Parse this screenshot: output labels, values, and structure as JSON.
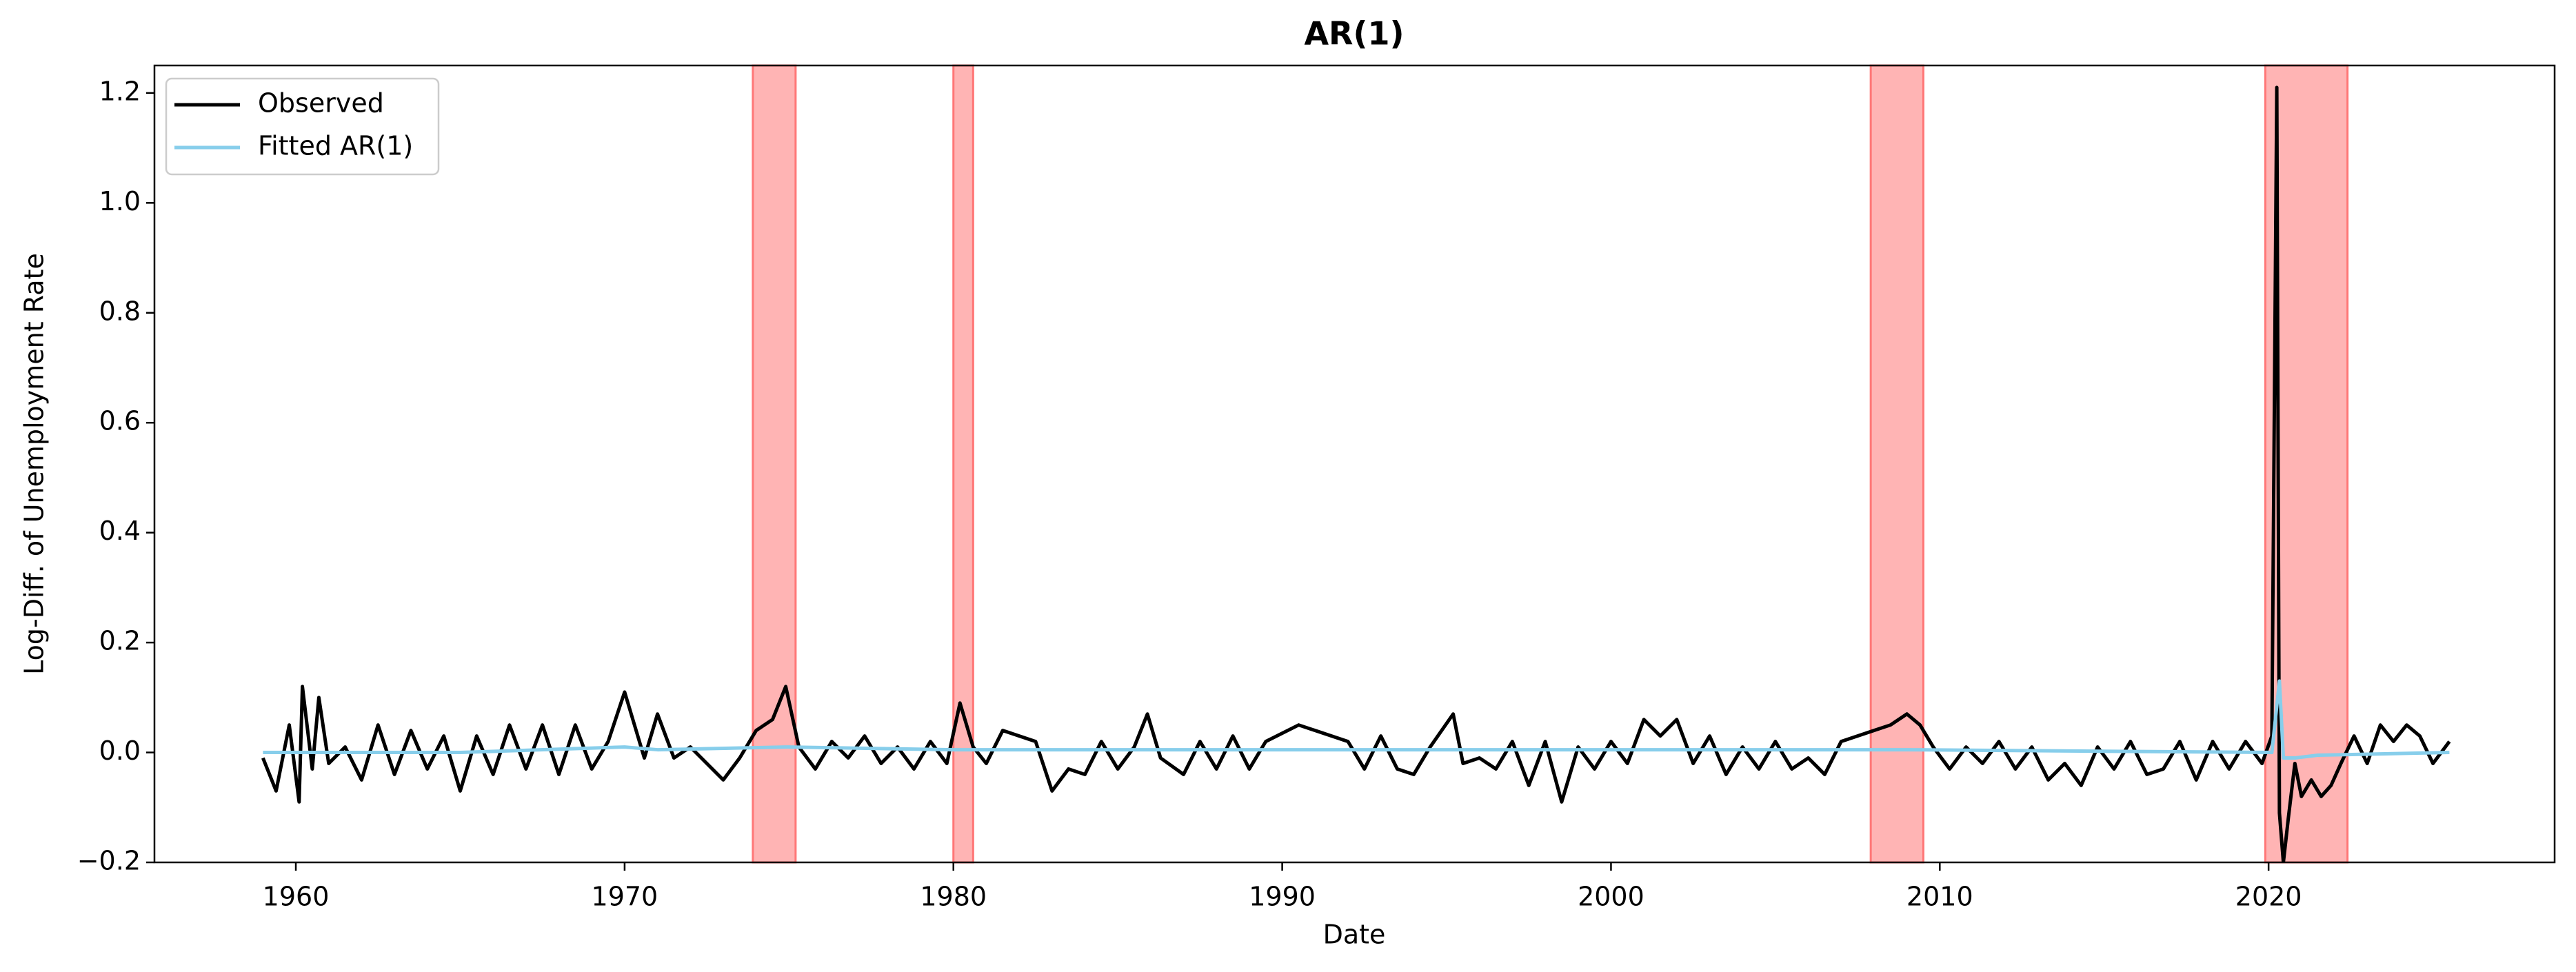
{
  "chart_data": {
    "type": "line",
    "title": "AR(1)",
    "x_label": "Date",
    "y_label": "Log-Diff. of Unemployment Rate",
    "xlim": [
      1955.7,
      2028.7
    ],
    "xticks": [
      1960,
      1970,
      1980,
      1990,
      2000,
      2010,
      2020
    ],
    "ylim": [
      -0.2,
      1.25
    ],
    "yticks": [
      {
        "value": -0.2,
        "label": "−0.2"
      },
      {
        "value": 0,
        "label": "0.0"
      },
      0.2,
      0.4,
      0.6,
      0.8,
      {
        "value": 1,
        "label": "1.0"
      },
      1.2
    ],
    "legend": "upper left",
    "grid": false,
    "shade_color": "#ff7777",
    "shaded_regions": [
      {
        "start": 1973.9,
        "end": 1975.2
      },
      {
        "start": 1980.0,
        "end": 1980.6
      },
      {
        "start": 2007.9,
        "end": 2009.5
      },
      {
        "start": 2019.9,
        "end": 2022.4
      }
    ],
    "series": [
      {
        "name": "Observed",
        "color": "#000000",
        "x": [
          1959.0,
          1959.4,
          1959.8,
          1960.1,
          1960.2,
          1960.5,
          1960.7,
          1961.0,
          1961.5,
          1962.0,
          1962.5,
          1963.0,
          1963.5,
          1964.0,
          1964.5,
          1965.0,
          1965.5,
          1966.0,
          1966.5,
          1967.0,
          1967.5,
          1968.0,
          1968.5,
          1969.0,
          1969.5,
          1970.0,
          1970.3,
          1970.6,
          1971.0,
          1971.5,
          1972.0,
          1972.5,
          1973.0,
          1973.5,
          1974.0,
          1974.5,
          1974.9,
          1975.3,
          1975.8,
          1976.3,
          1976.8,
          1977.3,
          1977.8,
          1978.3,
          1978.8,
          1979.3,
          1979.8,
          1980.2,
          1980.6,
          1981.0,
          1981.5,
          1982.0,
          1982.5,
          1983.0,
          1983.5,
          1984.0,
          1984.5,
          1985.0,
          1985.5,
          1985.9,
          1986.3,
          1987.0,
          1987.5,
          1988.0,
          1988.5,
          1989.0,
          1989.5,
          1990.5,
          1991.0,
          1991.5,
          1992.0,
          1992.5,
          1993.0,
          1993.5,
          1994.0,
          1994.5,
          1995.2,
          1995.5,
          1996.0,
          1996.5,
          1997.0,
          1997.5,
          1998.0,
          1998.5,
          1999.0,
          1999.5,
          2000.0,
          2000.5,
          2001.0,
          2001.5,
          2002.0,
          2002.5,
          2003.0,
          2003.5,
          2004.0,
          2004.5,
          2005.0,
          2005.5,
          2006.0,
          2006.5,
          2007.0,
          2007.5,
          2008.0,
          2008.5,
          2009.0,
          2009.4,
          2009.8,
          2010.3,
          2010.8,
          2011.3,
          2011.8,
          2012.3,
          2012.8,
          2013.3,
          2013.8,
          2014.3,
          2014.8,
          2015.3,
          2015.8,
          2016.3,
          2016.8,
          2017.3,
          2017.8,
          2018.3,
          2018.8,
          2019.3,
          2019.8,
          2020.1,
          2020.25,
          2020.33,
          2020.45,
          2020.6,
          2020.8,
          2021.0,
          2021.3,
          2021.6,
          2021.9,
          2022.2,
          2022.6,
          2023.0,
          2023.4,
          2023.8,
          2024.2,
          2024.6,
          2025.0,
          2025.5
        ],
        "values": [
          -0.01,
          -0.07,
          0.05,
          -0.09,
          0.12,
          -0.03,
          0.1,
          -0.02,
          0.01,
          -0.05,
          0.05,
          -0.04,
          0.04,
          -0.03,
          0.03,
          -0.07,
          0.03,
          -0.04,
          0.05,
          -0.03,
          0.05,
          -0.04,
          0.05,
          -0.03,
          0.02,
          0.11,
          0.05,
          -0.01,
          0.07,
          -0.01,
          0.01,
          -0.02,
          -0.05,
          -0.01,
          0.04,
          0.06,
          0.12,
          0.01,
          -0.03,
          0.02,
          -0.01,
          0.03,
          -0.02,
          0.01,
          -0.03,
          0.02,
          -0.02,
          0.09,
          0.01,
          -0.02,
          0.04,
          0.03,
          0.02,
          -0.07,
          -0.03,
          -0.04,
          0.02,
          -0.03,
          0.01,
          0.07,
          -0.01,
          -0.04,
          0.02,
          -0.03,
          0.03,
          -0.03,
          0.02,
          0.05,
          0.04,
          0.03,
          0.02,
          -0.03,
          0.03,
          -0.03,
          -0.04,
          0.01,
          0.07,
          -0.02,
          -0.01,
          -0.03,
          0.02,
          -0.06,
          0.02,
          -0.09,
          0.01,
          -0.03,
          0.02,
          -0.02,
          0.06,
          0.03,
          0.06,
          -0.02,
          0.03,
          -0.04,
          0.01,
          -0.03,
          0.02,
          -0.03,
          -0.01,
          -0.04,
          0.02,
          0.03,
          0.04,
          0.05,
          0.07,
          0.05,
          0.01,
          -0.03,
          0.01,
          -0.02,
          0.02,
          -0.03,
          0.01,
          -0.05,
          -0.02,
          -0.06,
          0.01,
          -0.03,
          0.02,
          -0.04,
          -0.03,
          0.02,
          -0.05,
          0.02,
          -0.03,
          0.02,
          -0.02,
          0.03,
          1.21,
          -0.11,
          -0.2,
          -0.12,
          -0.02,
          -0.08,
          -0.05,
          -0.08,
          -0.06,
          -0.02,
          0.03,
          -0.02,
          0.05,
          0.02,
          0.05,
          0.03,
          -0.02,
          0.02
        ]
      },
      {
        "name": "Fitted AR(1)",
        "color": "#87ceeb",
        "x": [
          1959.0,
          1960.0,
          1965.0,
          1970.0,
          1971.0,
          1974.9,
          1980.0,
          2009.0,
          2020.1,
          2020.33,
          2020.45,
          2020.8,
          2021.5,
          2025.5
        ],
        "values": [
          0,
          0,
          0,
          0.01,
          0.005,
          0.01,
          0.005,
          0.005,
          0,
          0.13,
          -0.01,
          -0.01,
          -0.005,
          0
        ]
      }
    ]
  }
}
